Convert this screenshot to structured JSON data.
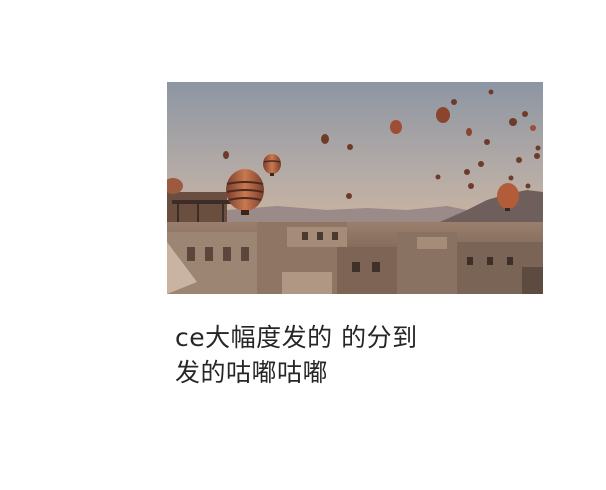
{
  "post": {
    "caption_lines": [
      "ce大幅度发的 的分到",
      "发的咕嘟咕嘟"
    ]
  },
  "photo": {
    "subject": "hot-air-balloons-over-town",
    "sky_top": "#8f96a0",
    "sky_bottom": "#d8b79a",
    "hill_color": "#7a6a66",
    "town_color": "#8a7060"
  }
}
